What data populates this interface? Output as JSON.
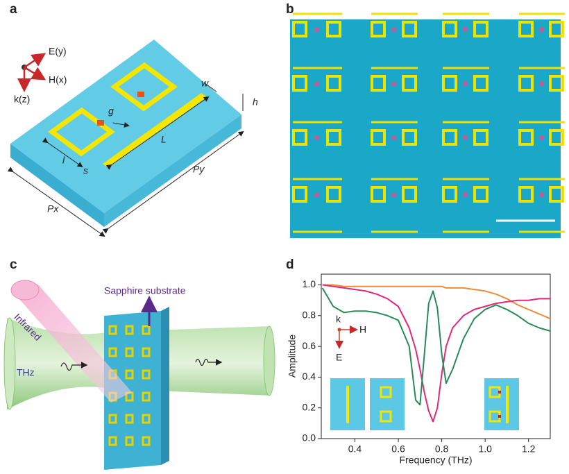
{
  "panel_labels": [
    "a",
    "b",
    "c",
    "d"
  ],
  "panel_a": {
    "axes": [
      "E(y)",
      "H(x)",
      "k(z)"
    ],
    "dims": [
      "w",
      "h",
      "g",
      "L",
      "l",
      "s",
      "Py",
      "Px"
    ]
  },
  "panel_c": {
    "substrate": "Sapphire substrate",
    "infrared": "Infrared",
    "thz": "THz"
  },
  "chart_data": {
    "type": "line",
    "xlabel": "Frequency (THz)",
    "ylabel": "Amplitude",
    "annotations": [
      "k",
      "H",
      "E"
    ],
    "x": [
      0.25,
      0.3,
      0.35,
      0.4,
      0.45,
      0.5,
      0.55,
      0.6,
      0.65,
      0.68,
      0.7,
      0.72,
      0.74,
      0.76,
      0.78,
      0.8,
      0.82,
      0.85,
      0.9,
      0.95,
      1.0,
      1.05,
      1.1,
      1.15,
      1.2,
      1.25,
      1.3
    ],
    "series": [
      {
        "color": "#ef8a3a",
        "values": [
          1.0,
          1.0,
          0.99,
          0.99,
          0.99,
          0.99,
          0.99,
          0.99,
          0.99,
          0.99,
          0.99,
          0.99,
          0.99,
          0.99,
          0.99,
          0.99,
          0.98,
          0.98,
          0.98,
          0.97,
          0.96,
          0.94,
          0.91,
          0.87,
          0.84,
          0.81,
          0.78
        ]
      },
      {
        "color": "#e0287a",
        "values": [
          1.0,
          0.99,
          0.98,
          0.97,
          0.96,
          0.94,
          0.91,
          0.86,
          0.72,
          0.58,
          0.45,
          0.3,
          0.18,
          0.11,
          0.2,
          0.42,
          0.6,
          0.72,
          0.8,
          0.84,
          0.86,
          0.88,
          0.89,
          0.9,
          0.9,
          0.91,
          0.91
        ]
      },
      {
        "color": "#2a8a55",
        "values": [
          0.98,
          0.86,
          0.82,
          0.83,
          0.83,
          0.82,
          0.8,
          0.77,
          0.6,
          0.25,
          0.22,
          0.55,
          0.88,
          0.96,
          0.85,
          0.55,
          0.36,
          0.45,
          0.65,
          0.78,
          0.84,
          0.87,
          0.84,
          0.8,
          0.75,
          0.72,
          0.7
        ]
      }
    ],
    "xlim": [
      0.245,
      1.3
    ],
    "ylim": [
      0,
      1.07
    ],
    "xticks": [
      0.4,
      0.6,
      0.8,
      {
        "value": 1.0,
        "label": "1.0"
      },
      1.2
    ],
    "yticks": [
      {
        "value": 0,
        "label": "0.0"
      },
      0.2,
      0.4,
      0.6,
      0.8,
      {
        "value": 1.0,
        "label": "1.0"
      }
    ]
  }
}
